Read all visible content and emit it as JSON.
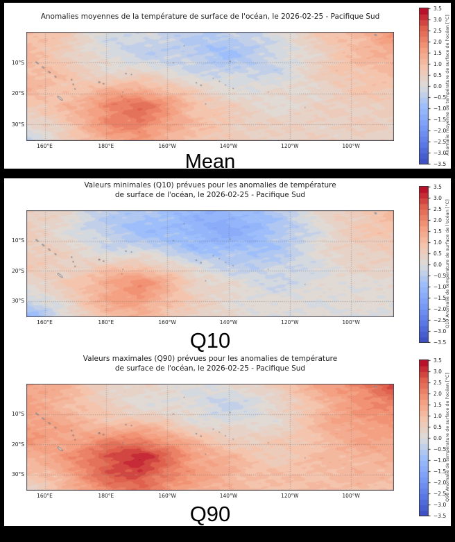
{
  "page": {
    "background": "#000000",
    "card_background": "#ffffff"
  },
  "panels": [
    {
      "id": "mean",
      "title": "Anomalies moyennes de la température de surface de l'océan, le 2026-02-25 - Pacifique Sud",
      "big_label": "Mean",
      "colorbar_label": "Anomalie moyenne de température de surface de l'océan [°C]"
    },
    {
      "id": "q10",
      "title": "Valeurs minimales (Q10) prévues pour les anomalies de température\nde surface de l'océan, le 2026-02-25 - Pacifique Sud",
      "big_label": "Q10",
      "colorbar_label": "Q10 Anomalie de température de surface de l'océan [°C]"
    },
    {
      "id": "q90",
      "title": "Valeurs maximales (Q90) prévues pour les anomalies de température\nde surface de l'océan, le 2026-02-25 - Pacifique Sud",
      "big_label": "Q90",
      "colorbar_label": "Q90 Anomalie de température de surface de l'océan [°C]"
    }
  ],
  "axes": {
    "x_ticks": [
      {
        "label": "160°E",
        "lon_e": 160
      },
      {
        "label": "180°E",
        "lon_e": 180
      },
      {
        "label": "160°W",
        "lon_e": 200
      },
      {
        "label": "140°W",
        "lon_e": 220
      },
      {
        "label": "120°W",
        "lon_e": 240
      },
      {
        "label": "100°W",
        "lon_e": 260
      }
    ],
    "y_ticks": [
      {
        "label": "10°S",
        "lat_s": 10
      },
      {
        "label": "20°S",
        "lat_s": 20
      },
      {
        "label": "30°S",
        "lat_s": 30
      }
    ]
  },
  "chart_data": [
    {
      "type": "heatmap",
      "title": "Anomalies moyennes de la température de surface de l'océan, le 2026-02-25 - Pacifique Sud",
      "label": "Mean",
      "units": "°C",
      "extent": {
        "lon_min_e": 154,
        "lon_max_e": 274,
        "lat_min_s": 0,
        "lat_max_s": 35.3
      },
      "grid_on": true,
      "contour_interval": 0.25,
      "colorbar": {
        "label": "Anomalie moyenne de température de surface de l'océan [°C]",
        "vmin": -3.5,
        "vmax": 3.5,
        "ticks": [
          3.5,
          3.0,
          2.5,
          2.0,
          1.5,
          1.0,
          0.5,
          0.0,
          -0.5,
          -1.0,
          -1.5,
          -2.0,
          -2.5,
          -3.0,
          -3.5
        ]
      },
      "grid": {
        "lats_s": [
          0,
          6,
          12,
          18,
          24,
          30,
          35.3
        ],
        "lons_e": [
          154,
          163,
          172,
          182,
          191,
          200,
          209,
          218,
          228,
          237,
          246,
          255,
          265,
          274
        ],
        "values": [
          [
            1.1,
            0.8,
            0.3,
            0.0,
            -0.2,
            -0.3,
            -0.4,
            -0.5,
            -0.3,
            0.2,
            0.5,
            0.9,
            1.3,
            1.9
          ],
          [
            1.0,
            0.8,
            0.3,
            -0.2,
            -0.4,
            -0.4,
            -0.6,
            -0.8,
            -0.5,
            -0.2,
            0.3,
            0.8,
            1.1,
            1.4
          ],
          [
            1.1,
            0.9,
            0.5,
            0.2,
            0.1,
            -0.1,
            -0.3,
            -0.5,
            -0.4,
            -0.2,
            0.3,
            0.8,
            1.0,
            1.1
          ],
          [
            1.2,
            1.0,
            0.8,
            1.0,
            1.2,
            0.8,
            0.3,
            0.1,
            0.0,
            0.1,
            0.3,
            0.6,
            0.8,
            0.8
          ],
          [
            0.8,
            0.9,
            1.3,
            2.2,
            2.4,
            1.8,
            1.0,
            0.6,
            0.3,
            0.2,
            0.3,
            0.5,
            0.6,
            0.6
          ],
          [
            0.3,
            0.6,
            1.3,
            2.0,
            2.3,
            1.6,
            1.0,
            0.8,
            0.5,
            0.4,
            0.5,
            0.5,
            0.5,
            0.5
          ],
          [
            -0.5,
            0.3,
            0.9,
            1.4,
            1.7,
            1.2,
            0.8,
            0.7,
            0.5,
            0.4,
            0.5,
            0.4,
            0.4,
            0.4
          ]
        ]
      }
    },
    {
      "type": "heatmap",
      "title": "Valeurs minimales (Q10) prévues pour les anomalies de température de surface de l'océan, le 2026-02-25 - Pacifique Sud",
      "label": "Q10",
      "units": "°C",
      "extent": {
        "lon_min_e": 154,
        "lon_max_e": 274,
        "lat_min_s": 0,
        "lat_max_s": 35.3
      },
      "grid_on": true,
      "contour_interval": 0.25,
      "colorbar": {
        "label": "Q10 Anomalie de température de surface de l'océan [°C]",
        "vmin": -3.5,
        "vmax": 3.5,
        "ticks": [
          3.5,
          3.0,
          2.5,
          2.0,
          1.5,
          1.0,
          0.5,
          0.0,
          -0.5,
          -1.0,
          -1.5,
          -2.0,
          -2.5,
          -3.0,
          -3.5
        ]
      },
      "grid": {
        "lats_s": [
          0,
          6,
          12,
          18,
          24,
          30,
          35.3
        ],
        "lons_e": [
          154,
          163,
          172,
          182,
          191,
          200,
          209,
          218,
          228,
          237,
          246,
          255,
          265,
          274
        ],
        "values": [
          [
            0.6,
            0.4,
            -0.1,
            -0.4,
            -0.7,
            -0.8,
            -1.0,
            -1.2,
            -0.9,
            -0.4,
            0.0,
            0.5,
            0.8,
            1.2
          ],
          [
            0.5,
            0.3,
            -0.2,
            -0.6,
            -0.9,
            -0.9,
            -1.2,
            -1.4,
            -1.1,
            -0.7,
            -0.2,
            0.4,
            0.7,
            0.9
          ],
          [
            0.6,
            0.4,
            0.1,
            -0.3,
            -0.4,
            -0.6,
            -0.9,
            -1.0,
            -0.9,
            -0.6,
            -0.1,
            0.4,
            0.6,
            0.7
          ],
          [
            0.7,
            0.6,
            0.4,
            0.5,
            0.7,
            0.3,
            -0.2,
            -0.4,
            -0.5,
            -0.4,
            -0.1,
            0.2,
            0.4,
            0.4
          ],
          [
            0.4,
            0.5,
            0.9,
            1.6,
            1.9,
            1.3,
            0.5,
            0.2,
            -0.1,
            -0.2,
            -0.1,
            0.1,
            0.2,
            0.2
          ],
          [
            -0.2,
            0.2,
            0.9,
            1.5,
            1.8,
            1.1,
            0.5,
            0.3,
            0.1,
            0.0,
            0.1,
            0.1,
            0.1,
            0.1
          ],
          [
            -1.2,
            -0.3,
            0.5,
            1.0,
            1.2,
            0.8,
            0.4,
            0.3,
            0.1,
            0.0,
            0.1,
            0.0,
            0.0,
            0.0
          ]
        ]
      }
    },
    {
      "type": "heatmap",
      "title": "Valeurs maximales (Q90) prévues pour les anomalies de température de surface de l'océan, le 2026-02-25 - Pacifique Sud",
      "label": "Q90",
      "units": "°C",
      "extent": {
        "lon_min_e": 154,
        "lon_max_e": 274,
        "lat_min_s": 0,
        "lat_max_s": 35.3
      },
      "grid_on": true,
      "contour_interval": 0.25,
      "colorbar": {
        "label": "Q90 Anomalie de température de surface de l'océan [°C]",
        "vmin": -3.5,
        "vmax": 3.5,
        "ticks": [
          3.5,
          3.0,
          2.5,
          2.0,
          1.5,
          1.0,
          0.5,
          0.0,
          -0.5,
          -1.0,
          -1.5,
          -2.0,
          -2.5,
          -3.0,
          -3.5
        ]
      },
      "grid": {
        "lats_s": [
          0,
          6,
          12,
          18,
          24,
          30,
          35.3
        ],
        "lons_e": [
          154,
          163,
          172,
          182,
          191,
          200,
          209,
          218,
          228,
          237,
          246,
          255,
          265,
          274
        ],
        "values": [
          [
            1.6,
            1.3,
            0.9,
            0.5,
            0.3,
            0.2,
            0.2,
            0.0,
            0.4,
            0.9,
            1.3,
            1.7,
            2.3,
            3.0
          ],
          [
            1.5,
            1.3,
            0.9,
            0.4,
            0.1,
            0.1,
            -0.1,
            -0.3,
            -0.1,
            0.3,
            0.9,
            1.5,
            1.8,
            2.2
          ],
          [
            1.6,
            1.4,
            1.1,
            0.8,
            0.7,
            0.5,
            0.1,
            -0.1,
            0.0,
            0.3,
            0.9,
            1.5,
            1.8,
            1.8
          ],
          [
            1.8,
            1.6,
            1.5,
            1.8,
            2.0,
            1.5,
            0.9,
            0.6,
            0.5,
            0.6,
            0.9,
            1.3,
            1.5,
            1.5
          ],
          [
            1.4,
            1.5,
            2.1,
            2.9,
            3.1,
            2.5,
            1.6,
            1.2,
            0.8,
            0.7,
            0.9,
            1.1,
            1.3,
            1.3
          ],
          [
            0.9,
            1.2,
            2.0,
            2.7,
            3.0,
            2.2,
            1.6,
            1.4,
            1.0,
            0.9,
            1.0,
            1.1,
            1.1,
            1.1
          ],
          [
            0.2,
            0.9,
            1.5,
            2.1,
            2.4,
            1.8,
            1.4,
            1.2,
            1.0,
            0.9,
            1.0,
            1.0,
            1.0,
            0.9
          ]
        ]
      }
    }
  ],
  "colormap": {
    "name": "coolwarm",
    "stops": [
      {
        "t": 0.0,
        "hex": "#3b4cc0"
      },
      {
        "t": 0.125,
        "hex": "#5977e5"
      },
      {
        "t": 0.25,
        "hex": "#7c9ff9"
      },
      {
        "t": 0.375,
        "hex": "#9dbefa"
      },
      {
        "t": 0.5,
        "hex": "#dddcdb"
      },
      {
        "t": 0.625,
        "hex": "#f4c4ad"
      },
      {
        "t": 0.75,
        "hex": "#f49a7b"
      },
      {
        "t": 0.875,
        "hex": "#de604d"
      },
      {
        "t": 1.0,
        "hex": "#b40426"
      }
    ]
  },
  "map_features": {
    "islands": [
      {
        "lon_e": 157.5,
        "lat_s": 10.0,
        "rx": 2.2,
        "ry": 0.7,
        "rot": 35
      },
      {
        "lon_e": 159.5,
        "lat_s": 11.5,
        "rx": 2.0,
        "ry": 0.7,
        "rot": 35
      },
      {
        "lon_e": 161.5,
        "lat_s": 13.0,
        "rx": 1.8,
        "ry": 0.6,
        "rot": 35
      },
      {
        "lon_e": 163.5,
        "lat_s": 14.5,
        "rx": 1.4,
        "ry": 0.5,
        "rot": 35
      },
      {
        "lon_e": 168.8,
        "lat_s": 15.5,
        "rx": 1.0,
        "ry": 0.45,
        "rot": 75
      },
      {
        "lon_e": 169.3,
        "lat_s": 17.0,
        "rx": 1.0,
        "ry": 0.45,
        "rot": 75
      },
      {
        "lon_e": 169.9,
        "lat_s": 18.5,
        "rx": 0.8,
        "ry": 0.4,
        "rot": 75
      },
      {
        "lon_e": 165.0,
        "lat_s": 21.5,
        "rx": 4.5,
        "ry": 1.1,
        "rot": 38
      },
      {
        "lon_e": 177.8,
        "lat_s": 16.3,
        "rx": 1.4,
        "ry": 0.7,
        "rot": 0
      },
      {
        "lon_e": 179.2,
        "lat_s": 16.8,
        "rx": 0.9,
        "ry": 0.5,
        "rot": 0
      },
      {
        "lon_e": 186.5,
        "lat_s": 13.5,
        "rx": 0.9,
        "ry": 0.35,
        "rot": 10
      },
      {
        "lon_e": 188.3,
        "lat_s": 13.8,
        "rx": 0.7,
        "ry": 0.3,
        "rot": 10
      },
      {
        "lon_e": 185.5,
        "lat_s": 19.5,
        "rx": 0.5,
        "ry": 0.25,
        "rot": 80
      },
      {
        "lon_e": 185.2,
        "lat_s": 21.0,
        "rx": 0.5,
        "ry": 0.25,
        "rot": 80
      },
      {
        "lon_e": 202.0,
        "lat_s": 10.0,
        "rx": 0.5,
        "ry": 0.3,
        "rot": 0
      },
      {
        "lon_e": 205.5,
        "lat_s": 4.5,
        "rx": 0.45,
        "ry": 0.3,
        "rot": 0
      },
      {
        "lon_e": 209.5,
        "lat_s": 16.5,
        "rx": 0.8,
        "ry": 0.4,
        "rot": 20
      },
      {
        "lon_e": 211.0,
        "lat_s": 17.3,
        "rx": 0.9,
        "ry": 0.4,
        "rot": 20
      },
      {
        "lon_e": 215.0,
        "lat_s": 15.0,
        "rx": 0.5,
        "ry": 0.3,
        "rot": 40
      },
      {
        "lon_e": 217.0,
        "lat_s": 16.0,
        "rx": 0.5,
        "ry": 0.3,
        "rot": 40
      },
      {
        "lon_e": 219.0,
        "lat_s": 17.2,
        "rx": 0.5,
        "ry": 0.3,
        "rot": 40
      },
      {
        "lon_e": 221.5,
        "lat_s": 18.3,
        "rx": 0.5,
        "ry": 0.3,
        "rot": 40
      },
      {
        "lon_e": 220.5,
        "lat_s": 9.5,
        "rx": 0.7,
        "ry": 0.4,
        "rot": 30
      },
      {
        "lon_e": 212.5,
        "lat_s": 23.3,
        "rx": 0.5,
        "ry": 0.3,
        "rot": 0
      },
      {
        "lon_e": 268.0,
        "lat_s": 1.0,
        "rx": 1.6,
        "ry": 0.8,
        "rot": 15
      },
      {
        "lon_e": 233.0,
        "lat_s": 19.5,
        "rx": 0.3,
        "ry": 0.2,
        "rot": 0
      },
      {
        "lon_e": 245.0,
        "lat_s": 24.5,
        "rx": 0.3,
        "ry": 0.2,
        "rot": 0
      }
    ]
  }
}
